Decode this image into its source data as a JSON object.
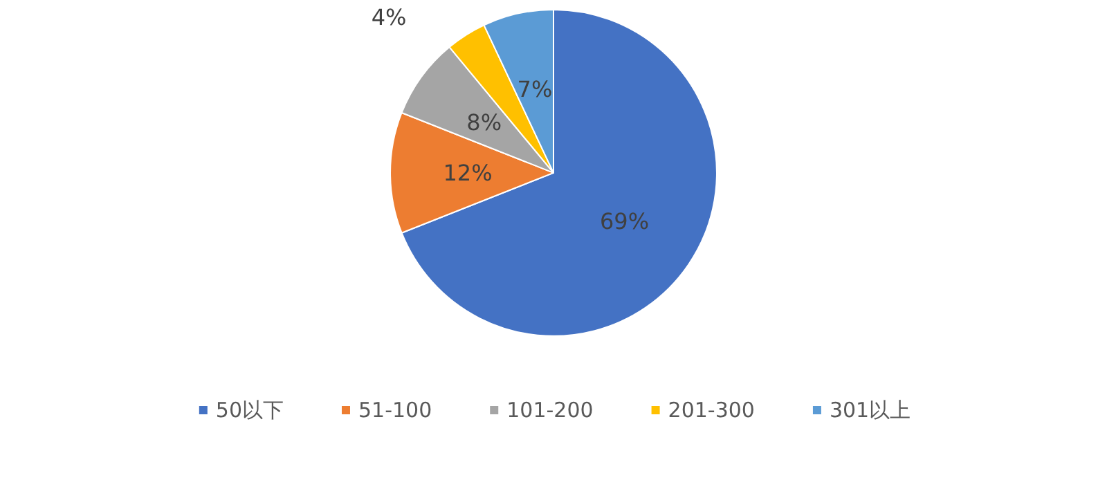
{
  "chart_data": {
    "type": "pie",
    "categories": [
      "50以下",
      "51-100",
      "101-200",
      "201-300",
      "301以上"
    ],
    "values": [
      69,
      12,
      8,
      4,
      7
    ],
    "colors": [
      "#4472c4",
      "#ed7d31",
      "#a5a5a5",
      "#ffc000",
      "#5b9bd5"
    ],
    "value_labels": [
      "69%",
      "12%",
      "8%",
      "4%",
      "7%"
    ],
    "legend": "bottom"
  }
}
